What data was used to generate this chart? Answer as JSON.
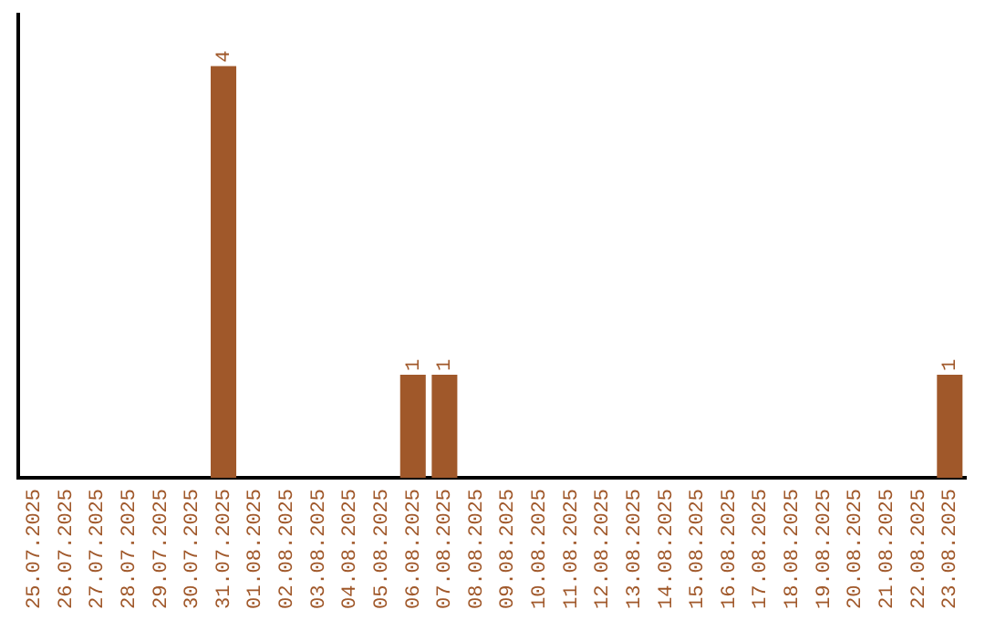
{
  "chart_data": {
    "type": "bar",
    "categories": [
      "25.07.2025",
      "26.07.2025",
      "27.07.2025",
      "28.07.2025",
      "29.07.2025",
      "30.07.2025",
      "31.07.2025",
      "01.08.2025",
      "02.08.2025",
      "03.08.2025",
      "04.08.2025",
      "05.08.2025",
      "06.08.2025",
      "07.08.2025",
      "08.08.2025",
      "09.08.2025",
      "10.08.2025",
      "11.08.2025",
      "12.08.2025",
      "13.08.2025",
      "14.08.2025",
      "15.08.2025",
      "16.08.2025",
      "17.08.2025",
      "18.08.2025",
      "19.08.2025",
      "20.08.2025",
      "21.08.2025",
      "22.08.2025",
      "23.08.2025"
    ],
    "values": [
      0,
      0,
      0,
      0,
      0,
      0,
      4,
      0,
      0,
      0,
      0,
      0,
      1,
      1,
      0,
      0,
      0,
      0,
      0,
      0,
      0,
      0,
      0,
      0,
      0,
      0,
      0,
      0,
      0,
      1
    ],
    "value_labels": [
      null,
      null,
      null,
      null,
      null,
      null,
      "4",
      null,
      null,
      null,
      null,
      null,
      "1",
      "1",
      null,
      null,
      null,
      null,
      null,
      null,
      null,
      null,
      null,
      null,
      null,
      null,
      null,
      null,
      null,
      "1"
    ],
    "color": "#a0582a",
    "grid": false,
    "legend": false,
    "tick_labels": "x"
  }
}
